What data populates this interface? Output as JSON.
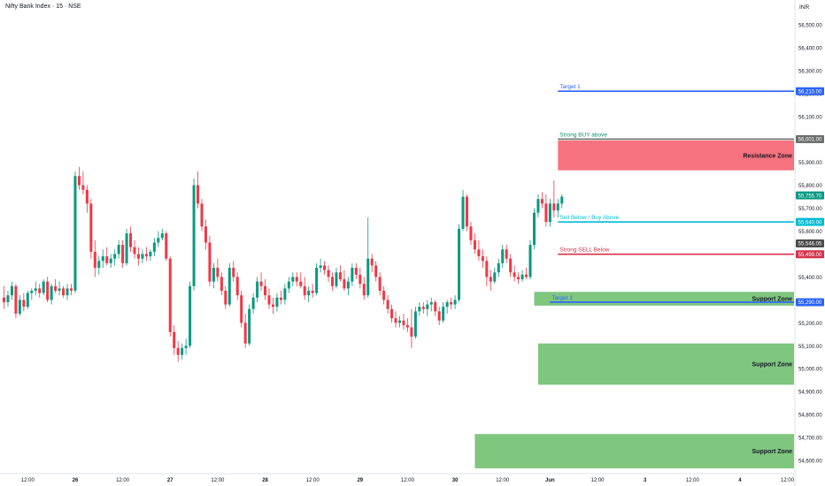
{
  "header": {
    "title": "Nifty Bank Index · 15 · NSE",
    "currency": "INR"
  },
  "chart_data": {
    "type": "candlestick",
    "ylim": [
      54550,
      56550
    ],
    "y_ticks": [
      {
        "value": 54600,
        "label": "54,600.00"
      },
      {
        "value": 54700,
        "label": "54,700.00"
      },
      {
        "value": 54800,
        "label": "54,800.00"
      },
      {
        "value": 54900,
        "label": "54,900.00"
      },
      {
        "value": 55000,
        "label": "55,000.00"
      },
      {
        "value": 55100,
        "label": "55,100.00"
      },
      {
        "value": 55200,
        "label": "55,200.00"
      },
      {
        "value": 55300,
        "label": "55,300.00"
      },
      {
        "value": 55400,
        "label": "55,400.00"
      },
      {
        "value": 55500,
        "label": "55,500.00"
      },
      {
        "value": 55600,
        "label": "55,600.00"
      },
      {
        "value": 55700,
        "label": "55,700.00"
      },
      {
        "value": 55800,
        "label": "55,800.00"
      },
      {
        "value": 55900,
        "label": "55,900.00"
      },
      {
        "value": 56000,
        "label": "56,000.00"
      },
      {
        "value": 56100,
        "label": "56,100.00"
      },
      {
        "value": 56200,
        "label": "56,200.00"
      },
      {
        "value": 56300,
        "label": "56,300.00"
      },
      {
        "value": 56400,
        "label": "56,400.00"
      },
      {
        "value": 56500,
        "label": "56,500.00"
      }
    ],
    "x_ticks": [
      {
        "label": "12:00",
        "bar": 6
      },
      {
        "label": "26",
        "bar": 18,
        "bold": true
      },
      {
        "label": "12:00",
        "bar": 30
      },
      {
        "label": "27",
        "bar": 42,
        "bold": true
      },
      {
        "label": "12:00",
        "bar": 54
      },
      {
        "label": "28",
        "bar": 66,
        "bold": true
      },
      {
        "label": "12:00",
        "bar": 78
      },
      {
        "label": "29",
        "bar": 90,
        "bold": true
      },
      {
        "label": "12:00",
        "bar": 102
      },
      {
        "label": "30",
        "bar": 114,
        "bold": true
      },
      {
        "label": "12:00",
        "bar": 126
      },
      {
        "label": "Jun",
        "bar": 138,
        "bold": true
      },
      {
        "label": "12:00",
        "bar": 150
      },
      {
        "label": "3",
        "bar": 162,
        "bold": true
      },
      {
        "label": "12:00",
        "bar": 174
      },
      {
        "label": "4",
        "bar": 186,
        "bold": true
      },
      {
        "label": "12:00",
        "bar": 198
      }
    ],
    "candles": [
      [
        55310,
        55360,
        55260,
        55290
      ],
      [
        55290,
        55340,
        55270,
        55320
      ],
      [
        55320,
        55380,
        55300,
        55360
      ],
      [
        55360,
        55370,
        55220,
        55240
      ],
      [
        55240,
        55320,
        55230,
        55300
      ],
      [
        55300,
        55330,
        55250,
        55270
      ],
      [
        55270,
        55340,
        55260,
        55330
      ],
      [
        55330,
        55350,
        55300,
        55340
      ],
      [
        55340,
        55380,
        55320,
        55350
      ],
      [
        55350,
        55370,
        55310,
        55330
      ],
      [
        55330,
        55390,
        55320,
        55380
      ],
      [
        55380,
        55400,
        55290,
        55300
      ],
      [
        55300,
        55370,
        55280,
        55360
      ],
      [
        55360,
        55390,
        55330,
        55340
      ],
      [
        55340,
        55380,
        55320,
        55350
      ],
      [
        55350,
        55360,
        55310,
        55320
      ],
      [
        55320,
        55370,
        55300,
        55350
      ],
      [
        55350,
        55370,
        55320,
        55340
      ],
      [
        55340,
        55860,
        55330,
        55840
      ],
      [
        55840,
        55880,
        55780,
        55800
      ],
      [
        55800,
        55860,
        55760,
        55780
      ],
      [
        55780,
        55800,
        55680,
        55720
      ],
      [
        55720,
        55740,
        55480,
        55510
      ],
      [
        55510,
        55560,
        55400,
        55440
      ],
      [
        55440,
        55490,
        55410,
        55470
      ],
      [
        55470,
        55520,
        55440,
        55490
      ],
      [
        55490,
        55530,
        55450,
        55460
      ],
      [
        55460,
        55500,
        55440,
        55480
      ],
      [
        55480,
        55520,
        55450,
        55500
      ],
      [
        55500,
        55560,
        55480,
        55540
      ],
      [
        55540,
        55560,
        55440,
        55460
      ],
      [
        55460,
        55610,
        55450,
        55590
      ],
      [
        55590,
        55620,
        55510,
        55530
      ],
      [
        55530,
        55560,
        55480,
        55500
      ],
      [
        55500,
        55530,
        55450,
        55480
      ],
      [
        55480,
        55520,
        55460,
        55500
      ],
      [
        55500,
        55530,
        55470,
        55490
      ],
      [
        55490,
        55520,
        55470,
        55510
      ],
      [
        55510,
        55570,
        55490,
        55550
      ],
      [
        55550,
        55600,
        55530,
        55570
      ],
      [
        55570,
        55610,
        55560,
        55590
      ],
      [
        55590,
        55600,
        55470,
        55480
      ],
      [
        55480,
        55490,
        55140,
        55160
      ],
      [
        55160,
        55190,
        55060,
        55090
      ],
      [
        55090,
        55120,
        55030,
        55060
      ],
      [
        55060,
        55110,
        55040,
        55090
      ],
      [
        55090,
        55130,
        55060,
        55100
      ],
      [
        55100,
        55380,
        55090,
        55360
      ],
      [
        55360,
        55830,
        55340,
        55800
      ],
      [
        55800,
        55860,
        55700,
        55720
      ],
      [
        55720,
        55740,
        55600,
        55620
      ],
      [
        55620,
        55650,
        55520,
        55550
      ],
      [
        55550,
        55580,
        55360,
        55380
      ],
      [
        55380,
        55460,
        55350,
        55440
      ],
      [
        55440,
        55480,
        55380,
        55400
      ],
      [
        55400,
        55420,
        55320,
        55340
      ],
      [
        55340,
        55360,
        55260,
        55280
      ],
      [
        55280,
        55460,
        55270,
        55440
      ],
      [
        55440,
        55470,
        55380,
        55400
      ],
      [
        55400,
        55420,
        55300,
        55320
      ],
      [
        55320,
        55340,
        55180,
        55200
      ],
      [
        55200,
        55240,
        55090,
        55110
      ],
      [
        55110,
        55280,
        55100,
        55260
      ],
      [
        55260,
        55330,
        55240,
        55310
      ],
      [
        55310,
        55400,
        55290,
        55380
      ],
      [
        55380,
        55420,
        55340,
        55360
      ],
      [
        55360,
        55390,
        55300,
        55320
      ],
      [
        55320,
        55350,
        55260,
        55280
      ],
      [
        55280,
        55310,
        55240,
        55270
      ],
      [
        55270,
        55330,
        55250,
        55310
      ],
      [
        55310,
        55340,
        55280,
        55300
      ],
      [
        55300,
        55370,
        55280,
        55350
      ],
      [
        55350,
        55400,
        55330,
        55380
      ],
      [
        55380,
        55420,
        55360,
        55400
      ],
      [
        55400,
        55420,
        55360,
        55380
      ],
      [
        55380,
        55420,
        55350,
        55360
      ],
      [
        55360,
        55400,
        55300,
        55320
      ],
      [
        55320,
        55360,
        55290,
        55340
      ],
      [
        55340,
        55370,
        55310,
        55330
      ],
      [
        55330,
        55460,
        55320,
        55440
      ],
      [
        55440,
        55480,
        55420,
        55450
      ],
      [
        55450,
        55470,
        55410,
        55430
      ],
      [
        55430,
        55450,
        55380,
        55400
      ],
      [
        55400,
        55420,
        55340,
        55360
      ],
      [
        55360,
        55440,
        55350,
        55420
      ],
      [
        55420,
        55450,
        55380,
        55390
      ],
      [
        55390,
        55430,
        55340,
        55350
      ],
      [
        55350,
        55400,
        55320,
        55380
      ],
      [
        55380,
        55460,
        55360,
        55440
      ],
      [
        55440,
        55460,
        55390,
        55410
      ],
      [
        55410,
        55440,
        55350,
        55370
      ],
      [
        55370,
        55400,
        55300,
        55320
      ],
      [
        55320,
        55660,
        55310,
        55480
      ],
      [
        55480,
        55500,
        55420,
        55450
      ],
      [
        55450,
        55470,
        55380,
        55400
      ],
      [
        55400,
        55420,
        55320,
        55340
      ],
      [
        55340,
        55360,
        55280,
        55300
      ],
      [
        55300,
        55320,
        55240,
        55260
      ],
      [
        55260,
        55280,
        55200,
        55220
      ],
      [
        55220,
        55250,
        55180,
        55200
      ],
      [
        55200,
        55230,
        55180,
        55210
      ],
      [
        55210,
        55240,
        55170,
        55190
      ],
      [
        55190,
        55220,
        55160,
        55180
      ],
      [
        55180,
        55260,
        55090,
        55140
      ],
      [
        55140,
        55270,
        55130,
        55250
      ],
      [
        55250,
        55290,
        55230,
        55270
      ],
      [
        55270,
        55290,
        55240,
        55260
      ],
      [
        55260,
        55300,
        55230,
        55280
      ],
      [
        55280,
        55310,
        55250,
        55290
      ],
      [
        55290,
        55300,
        55230,
        55250
      ],
      [
        55250,
        55270,
        55190,
        55210
      ],
      [
        55210,
        55290,
        55200,
        55270
      ],
      [
        55270,
        55300,
        55240,
        55290
      ],
      [
        55290,
        55310,
        55260,
        55280
      ],
      [
        55280,
        55320,
        55260,
        55300
      ],
      [
        55300,
        55630,
        55290,
        55610
      ],
      [
        55610,
        55780,
        55600,
        55750
      ],
      [
        55750,
        55760,
        55600,
        55620
      ],
      [
        55620,
        55640,
        55540,
        55560
      ],
      [
        55560,
        55590,
        55500,
        55520
      ],
      [
        55520,
        55560,
        55470,
        55490
      ],
      [
        55490,
        55520,
        55440,
        55470
      ],
      [
        55470,
        55490,
        55360,
        55400
      ],
      [
        55400,
        55430,
        55340,
        55380
      ],
      [
        55380,
        55440,
        55370,
        55420
      ],
      [
        55420,
        55480,
        55400,
        55460
      ],
      [
        55460,
        55540,
        55440,
        55520
      ],
      [
        55520,
        55540,
        55460,
        55480
      ],
      [
        55480,
        55500,
        55400,
        55420
      ],
      [
        55420,
        55450,
        55380,
        55400
      ],
      [
        55400,
        55420,
        55370,
        55390
      ],
      [
        55390,
        55430,
        55380,
        55410
      ],
      [
        55410,
        55440,
        55390,
        55400
      ],
      [
        55400,
        55560,
        55390,
        55540
      ],
      [
        55540,
        55700,
        55520,
        55680
      ],
      [
        55680,
        55760,
        55660,
        55740
      ],
      [
        55740,
        55770,
        55700,
        55720
      ],
      [
        55720,
        55760,
        55620,
        55640
      ],
      [
        55640,
        55740,
        55620,
        55720
      ],
      [
        55720,
        55820,
        55660,
        55690
      ],
      [
        55690,
        55740,
        55660,
        55720
      ],
      [
        55720,
        55760,
        55700,
        55750
      ]
    ],
    "levels": [
      {
        "label": "Target 1",
        "value": 56210,
        "price_label": "56,210.00",
        "color": "#2962ff",
        "start_bar": 140
      },
      {
        "label": "Strong BUY above",
        "value": 56001,
        "price_label": "56,001.00",
        "color": "#6b6e6c",
        "label_color": "#0b8f6b",
        "start_bar": 140
      },
      {
        "label": "Sell Below / Buy Above",
        "value": 55640,
        "price_label": "55,640.00",
        "color": "#00bcd4",
        "start_bar": 140
      },
      {
        "label": "Strong SELL Below",
        "value": 55499,
        "price_label": "55,499.00",
        "color": "#d6314b",
        "start_bar": 140
      },
      {
        "label": "Target 1",
        "value": 55290,
        "price_label": "55,290.00",
        "color": "#2962ff",
        "start_bar": 138
      }
    ],
    "zones": [
      {
        "label": "Resistance Zone",
        "top": 55995,
        "bottom": 55865,
        "start_bar": 140,
        "color": "#f7727f"
      },
      {
        "label": "Support Zone",
        "top": 55335,
        "bottom": 55275,
        "start_bar": 134,
        "color": "#7fc67f"
      },
      {
        "label": "Support Zone",
        "top": 55110,
        "bottom": 54930,
        "start_bar": 135,
        "color": "#7fc67f"
      },
      {
        "label": "Support Zone",
        "top": 54715,
        "bottom": 54565,
        "start_bar": 119,
        "color": "#7fc67f"
      }
    ],
    "price_tags": [
      {
        "value": 55755.7,
        "label": "55,755.70",
        "color": "#089981"
      },
      {
        "value": 55546.05,
        "label": "55,546.05",
        "color": "#4a4a4a"
      }
    ],
    "colors": {
      "up": "#089981",
      "down": "#f23645"
    }
  }
}
